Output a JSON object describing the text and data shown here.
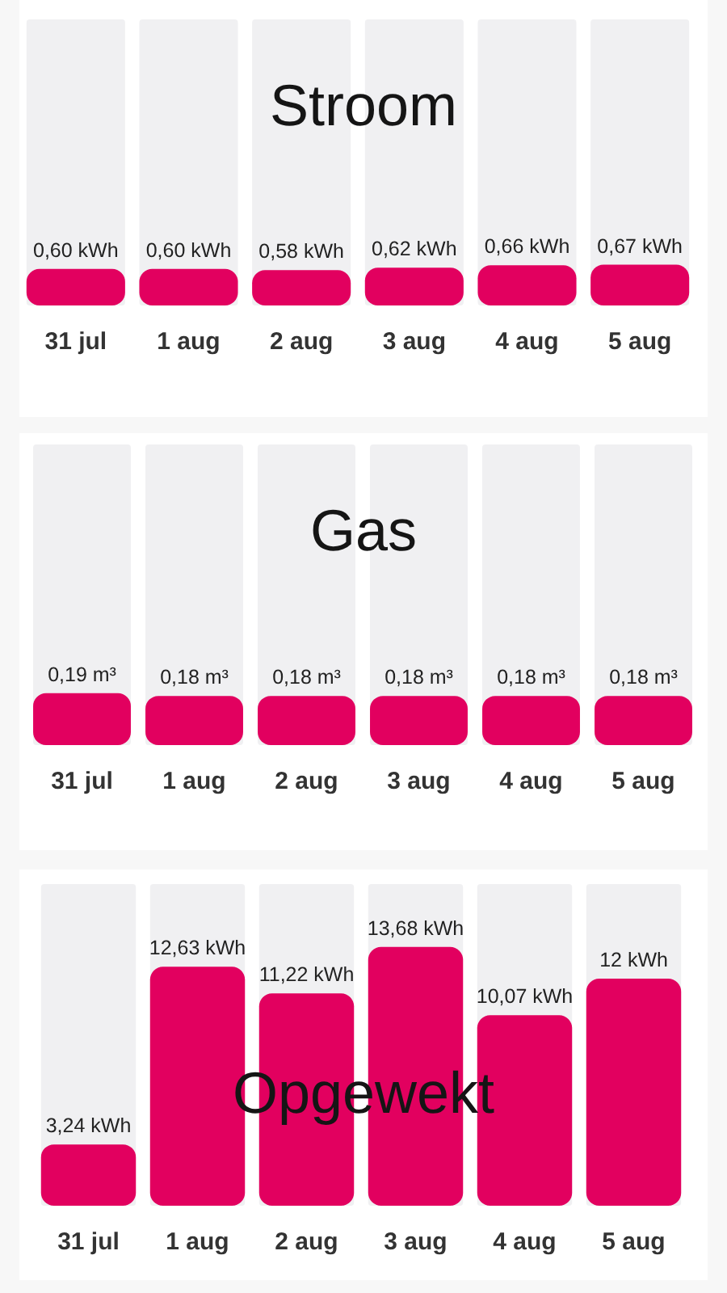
{
  "chart_data": [
    {
      "type": "bar",
      "title": "Stroom",
      "categories": [
        "31 jul",
        "1 aug",
        "2 aug",
        "3 aug",
        "4 aug",
        "5 aug"
      ],
      "values": [
        0.6,
        0.6,
        0.58,
        0.62,
        0.66,
        0.67
      ],
      "value_labels": [
        "0,60 kWh",
        "0,60 kWh",
        "0,58 kWh",
        "0,62 kWh",
        "0,66 kWh",
        "0,67 kWh"
      ],
      "color": "#e2005f",
      "ylim": [
        0,
        4.7
      ],
      "tick_labels": "x"
    },
    {
      "type": "bar",
      "title": "Gas",
      "categories": [
        "31 jul",
        "1 aug",
        "2 aug",
        "3 aug",
        "4 aug",
        "5 aug"
      ],
      "values": [
        0.19,
        0.18,
        0.18,
        0.18,
        0.18,
        0.18
      ],
      "value_labels": [
        "0,19 m³",
        "0,18 m³",
        "0,18 m³",
        "0,18 m³",
        "0,18 m³",
        "0,18 m³"
      ],
      "color": "#e2005f",
      "ylim": [
        0,
        1.1
      ],
      "tick_labels": "x"
    },
    {
      "type": "bar",
      "title": "Opgewekt",
      "categories": [
        "31 jul",
        "1 aug",
        "2 aug",
        "3 aug",
        "4 aug",
        "5 aug"
      ],
      "values": [
        3.24,
        12.63,
        11.22,
        13.68,
        10.07,
        12
      ],
      "value_labels": [
        "3,24 kWh",
        "12,63 kWh",
        "11,22 kWh",
        "13,68 kWh",
        "10,07 kWh",
        "12 kWh"
      ],
      "color": "#e2005f",
      "ylim": [
        0,
        17
      ],
      "tick_labels": "x"
    }
  ]
}
